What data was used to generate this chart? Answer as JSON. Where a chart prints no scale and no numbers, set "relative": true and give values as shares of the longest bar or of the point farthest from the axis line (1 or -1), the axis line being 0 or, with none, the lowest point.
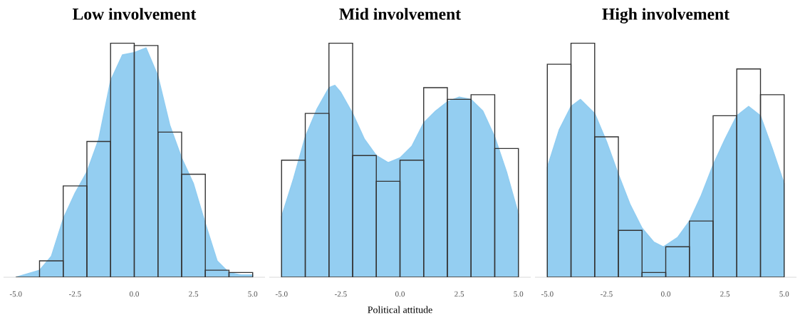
{
  "chart_data": [
    {
      "type": "histogram",
      "title": "Low involvement",
      "relative": true,
      "xlim": [
        -5.5,
        5.5
      ],
      "xticks": [
        {
          "value": -5,
          "label": "-5.0"
        },
        {
          "value": -2.5,
          "label": "-2.5"
        },
        {
          "value": 0,
          "label": "0.0"
        },
        {
          "value": 2.5,
          "label": "2.5"
        },
        {
          "value": 5,
          "label": "5.0"
        }
      ],
      "tick_labels": "x",
      "series": [
        {
          "type": "area",
          "color": "#8ecbf0",
          "x": [
            -5,
            -4,
            -3.5,
            -3,
            -2.5,
            -2,
            -1.5,
            -1,
            -0.5,
            0,
            0.5,
            1,
            1.5,
            2,
            2.5,
            3,
            3.5,
            4,
            4.5,
            5
          ],
          "values": [
            0,
            0.03,
            0.09,
            0.25,
            0.36,
            0.45,
            0.59,
            0.84,
            0.95,
            0.96,
            0.98,
            0.86,
            0.65,
            0.51,
            0.4,
            0.23,
            0.07,
            0.02,
            0.01,
            0.01
          ]
        },
        {
          "type": "histogram",
          "color": "#333333",
          "bins": [
            -5,
            -4,
            -3,
            -2,
            -1,
            0,
            1,
            2,
            3,
            4,
            5
          ],
          "values": [
            0,
            0.07,
            0.39,
            0.58,
            1,
            0.99,
            0.62,
            0.44,
            0.03,
            0.02
          ]
        }
      ]
    },
    {
      "type": "histogram",
      "title": "Mid involvement",
      "xlabel": "Political attitude",
      "relative": true,
      "xlim": [
        -5.5,
        5.5
      ],
      "xticks": [
        {
          "value": -5,
          "label": "-5.0"
        },
        {
          "value": -2.5,
          "label": "-2.5"
        },
        {
          "value": 0,
          "label": "0.0"
        },
        {
          "value": 2.5,
          "label": "2.5"
        },
        {
          "value": 5,
          "label": "5.0"
        }
      ],
      "tick_labels": "x",
      "series": [
        {
          "type": "area",
          "color": "#8ecbf0",
          "x": [
            -5,
            -4.5,
            -4,
            -3.5,
            -3,
            -2.75,
            -2.5,
            -2,
            -1.5,
            -1,
            -0.5,
            0,
            0.5,
            1,
            1.5,
            2,
            2.5,
            3,
            3.5,
            4,
            4.5,
            5
          ],
          "values": [
            0.26,
            0.42,
            0.6,
            0.72,
            0.81,
            0.82,
            0.79,
            0.7,
            0.59,
            0.52,
            0.49,
            0.51,
            0.56,
            0.66,
            0.71,
            0.75,
            0.77,
            0.76,
            0.71,
            0.6,
            0.45,
            0.27
          ]
        },
        {
          "type": "histogram",
          "color": "#333333",
          "bins": [
            -5,
            -4,
            -3,
            -2,
            -1,
            0,
            1,
            2,
            3,
            4,
            5
          ],
          "values": [
            0.5,
            0.7,
            1,
            0.52,
            0.41,
            0.5,
            0.81,
            0.76,
            0.78,
            0.55
          ]
        }
      ]
    },
    {
      "type": "histogram",
      "title": "High involvement",
      "relative": true,
      "xlim": [
        -5.5,
        5.5
      ],
      "xticks": [
        {
          "value": -5,
          "label": "-5.0"
        },
        {
          "value": -2.5,
          "label": "-2.5"
        },
        {
          "value": 0,
          "label": "0.0"
        },
        {
          "value": 2.5,
          "label": "2.5"
        },
        {
          "value": 5,
          "label": "5.0"
        }
      ],
      "tick_labels": "x",
      "series": [
        {
          "type": "area",
          "color": "#8ecbf0",
          "x": [
            -5,
            -4.5,
            -4,
            -3.6,
            -3,
            -2.5,
            -2,
            -1.5,
            -1,
            -0.5,
            -0.1,
            0.5,
            1,
            1.5,
            2,
            2.5,
            3,
            3.5,
            4,
            4.5,
            5
          ],
          "values": [
            0.47,
            0.63,
            0.73,
            0.76,
            0.7,
            0.58,
            0.44,
            0.31,
            0.21,
            0.15,
            0.13,
            0.17,
            0.24,
            0.35,
            0.48,
            0.59,
            0.69,
            0.73,
            0.69,
            0.55,
            0.4
          ]
        },
        {
          "type": "histogram",
          "color": "#333333",
          "bins": [
            -5,
            -4,
            -3,
            -2,
            -1,
            0,
            1,
            2,
            3,
            4,
            5
          ],
          "values": [
            0.91,
            1,
            0.6,
            0.2,
            0.02,
            0.13,
            0.24,
            0.69,
            0.89,
            0.78
          ]
        }
      ]
    }
  ]
}
